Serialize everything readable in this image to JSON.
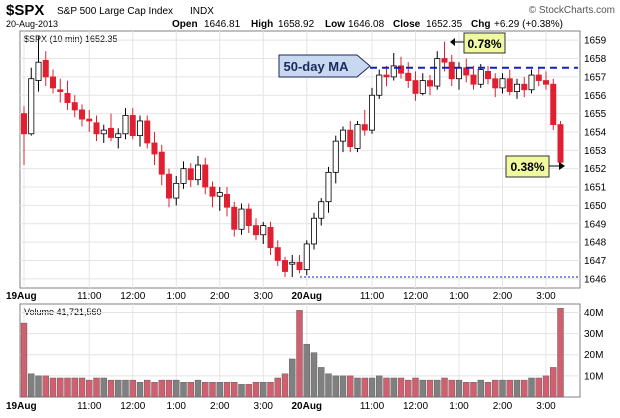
{
  "header": {
    "symbol": "$SPX",
    "name": "S&P 500 Large Cap Index",
    "exchange": "INDX",
    "date": "20-Aug-2013",
    "open_label": "Open",
    "open_value": "1646.81",
    "high_label": "High",
    "high_value": "1658.92",
    "low_label": "Low",
    "low_value": "1646.08",
    "close_label": "Close",
    "close_value": "1652.35",
    "chg_label": "Chg",
    "chg_value": "+6.29 (+0.38%)",
    "watermark": "© StockCharts.com"
  },
  "price_panel": {
    "legend": "$SPX (10 min) 1652.35",
    "ma_label": "50-day MA",
    "ma_level": 1657.5,
    "low_level": 1646.1,
    "callout_high": "0.78%",
    "callout_close": "0.38%"
  },
  "volume_panel": {
    "legend": "Volume 41,721,560"
  },
  "colors": {
    "up": "#ffffff",
    "down": "#e02030",
    "candle_outline": "#000000",
    "volume_up": "#808080",
    "volume_down": "#d06070",
    "ma_line": "#1020c0",
    "callout_fill": "#f0f8a0",
    "ma_label_fill": "#c8d8f0"
  },
  "chart_data": [
    {
      "type": "candlestick",
      "title": "$SPX (10 min)",
      "ylim": [
        1645.5,
        1659.5
      ],
      "y_ticks": [
        1646,
        1647,
        1648,
        1649,
        1650,
        1651,
        1652,
        1653,
        1654,
        1655,
        1656,
        1657,
        1658,
        1659
      ],
      "x_ticks": [
        {
          "label": "19Aug",
          "i": 0
        },
        {
          "label": "11:00",
          "i": 9
        },
        {
          "label": "12:00",
          "i": 15
        },
        {
          "label": "1:00",
          "i": 21
        },
        {
          "label": "2:00",
          "i": 27
        },
        {
          "label": "3:00",
          "i": 33
        },
        {
          "label": "20Aug",
          "i": 39
        },
        {
          "label": "11:00",
          "i": 48
        },
        {
          "label": "12:00",
          "i": 54
        },
        {
          "label": "1:00",
          "i": 60
        },
        {
          "label": "2:00",
          "i": 66
        },
        {
          "label": "3:00",
          "i": 72
        }
      ],
      "candles": [
        {
          "o": 1655.0,
          "h": 1655.4,
          "l": 1652.2,
          "c": 1653.9
        },
        {
          "o": 1653.9,
          "h": 1657.5,
          "l": 1653.8,
          "c": 1656.9
        },
        {
          "o": 1656.8,
          "h": 1659.2,
          "l": 1656.2,
          "c": 1657.8
        },
        {
          "o": 1657.9,
          "h": 1658.4,
          "l": 1656.5,
          "c": 1657.0
        },
        {
          "o": 1657.0,
          "h": 1657.4,
          "l": 1656.1,
          "c": 1656.4
        },
        {
          "o": 1656.3,
          "h": 1656.9,
          "l": 1655.6,
          "c": 1656.2
        },
        {
          "o": 1656.1,
          "h": 1656.8,
          "l": 1655.2,
          "c": 1655.6
        },
        {
          "o": 1655.6,
          "h": 1656.0,
          "l": 1654.8,
          "c": 1655.2
        },
        {
          "o": 1655.2,
          "h": 1655.5,
          "l": 1654.3,
          "c": 1654.7
        },
        {
          "o": 1654.7,
          "h": 1655.2,
          "l": 1654.0,
          "c": 1654.6
        },
        {
          "o": 1654.5,
          "h": 1654.9,
          "l": 1653.5,
          "c": 1653.9
        },
        {
          "o": 1653.9,
          "h": 1654.4,
          "l": 1653.4,
          "c": 1654.1
        },
        {
          "o": 1654.2,
          "h": 1655.0,
          "l": 1653.5,
          "c": 1653.7
        },
        {
          "o": 1653.7,
          "h": 1654.2,
          "l": 1653.1,
          "c": 1653.9
        },
        {
          "o": 1653.9,
          "h": 1655.3,
          "l": 1653.6,
          "c": 1654.9
        },
        {
          "o": 1654.9,
          "h": 1655.3,
          "l": 1653.6,
          "c": 1653.8
        },
        {
          "o": 1653.8,
          "h": 1654.9,
          "l": 1653.2,
          "c": 1654.6
        },
        {
          "o": 1654.6,
          "h": 1654.9,
          "l": 1653.1,
          "c": 1653.4
        },
        {
          "o": 1653.4,
          "h": 1654.0,
          "l": 1652.2,
          "c": 1652.8
        },
        {
          "o": 1652.9,
          "h": 1653.3,
          "l": 1651.1,
          "c": 1651.7
        },
        {
          "o": 1651.7,
          "h": 1652.0,
          "l": 1649.9,
          "c": 1650.4
        },
        {
          "o": 1650.4,
          "h": 1651.6,
          "l": 1650.0,
          "c": 1651.2
        },
        {
          "o": 1651.2,
          "h": 1652.4,
          "l": 1650.9,
          "c": 1652.0
        },
        {
          "o": 1652.0,
          "h": 1652.3,
          "l": 1651.0,
          "c": 1651.4
        },
        {
          "o": 1651.4,
          "h": 1652.7,
          "l": 1651.1,
          "c": 1652.2
        },
        {
          "o": 1652.2,
          "h": 1652.6,
          "l": 1650.6,
          "c": 1651.0
        },
        {
          "o": 1651.0,
          "h": 1651.3,
          "l": 1649.9,
          "c": 1650.5
        },
        {
          "o": 1650.5,
          "h": 1651.0,
          "l": 1649.7,
          "c": 1650.7
        },
        {
          "o": 1650.6,
          "h": 1651.0,
          "l": 1649.4,
          "c": 1649.9
        },
        {
          "o": 1649.9,
          "h": 1650.2,
          "l": 1648.3,
          "c": 1648.7
        },
        {
          "o": 1648.7,
          "h": 1650.1,
          "l": 1648.4,
          "c": 1649.8
        },
        {
          "o": 1649.8,
          "h": 1650.1,
          "l": 1648.5,
          "c": 1648.9
        },
        {
          "o": 1648.9,
          "h": 1649.3,
          "l": 1648.1,
          "c": 1648.4
        },
        {
          "o": 1648.4,
          "h": 1649.1,
          "l": 1647.9,
          "c": 1648.9
        },
        {
          "o": 1648.8,
          "h": 1649.1,
          "l": 1647.3,
          "c": 1647.7
        },
        {
          "o": 1647.7,
          "h": 1648.1,
          "l": 1646.7,
          "c": 1647.0
        },
        {
          "o": 1647.0,
          "h": 1647.2,
          "l": 1646.1,
          "c": 1646.4
        },
        {
          "o": 1646.8,
          "h": 1647.3,
          "l": 1646.1,
          "c": 1646.9
        },
        {
          "o": 1646.9,
          "h": 1647.3,
          "l": 1646.3,
          "c": 1646.5
        },
        {
          "o": 1646.5,
          "h": 1648.1,
          "l": 1646.2,
          "c": 1647.9
        },
        {
          "o": 1647.9,
          "h": 1649.6,
          "l": 1647.6,
          "c": 1649.3
        },
        {
          "o": 1649.3,
          "h": 1650.4,
          "l": 1648.9,
          "c": 1650.2
        },
        {
          "o": 1650.2,
          "h": 1652.1,
          "l": 1649.6,
          "c": 1651.8
        },
        {
          "o": 1651.8,
          "h": 1653.8,
          "l": 1651.2,
          "c": 1653.5
        },
        {
          "o": 1653.5,
          "h": 1654.3,
          "l": 1652.9,
          "c": 1654.1
        },
        {
          "o": 1654.1,
          "h": 1654.6,
          "l": 1652.9,
          "c": 1653.2
        },
        {
          "o": 1653.1,
          "h": 1654.6,
          "l": 1652.9,
          "c": 1654.4
        },
        {
          "o": 1654.4,
          "h": 1655.2,
          "l": 1653.8,
          "c": 1654.1
        },
        {
          "o": 1654.1,
          "h": 1656.4,
          "l": 1653.9,
          "c": 1656.0
        },
        {
          "o": 1656.0,
          "h": 1657.4,
          "l": 1655.8,
          "c": 1657.1
        },
        {
          "o": 1657.1,
          "h": 1657.6,
          "l": 1656.5,
          "c": 1657.0
        },
        {
          "o": 1657.0,
          "h": 1658.3,
          "l": 1656.8,
          "c": 1657.6
        },
        {
          "o": 1657.6,
          "h": 1658.1,
          "l": 1656.9,
          "c": 1657.2
        },
        {
          "o": 1657.2,
          "h": 1657.8,
          "l": 1656.4,
          "c": 1656.8
        },
        {
          "o": 1656.8,
          "h": 1657.3,
          "l": 1655.7,
          "c": 1656.1
        },
        {
          "o": 1656.1,
          "h": 1657.2,
          "l": 1656.0,
          "c": 1656.8
        },
        {
          "o": 1656.8,
          "h": 1657.1,
          "l": 1656.0,
          "c": 1656.5
        },
        {
          "o": 1656.5,
          "h": 1658.4,
          "l": 1656.3,
          "c": 1658.0
        },
        {
          "o": 1658.0,
          "h": 1658.92,
          "l": 1657.3,
          "c": 1657.8
        },
        {
          "o": 1657.8,
          "h": 1658.2,
          "l": 1656.5,
          "c": 1656.9
        },
        {
          "o": 1656.9,
          "h": 1657.8,
          "l": 1656.3,
          "c": 1657.5
        },
        {
          "o": 1657.5,
          "h": 1658.0,
          "l": 1656.7,
          "c": 1657.1
        },
        {
          "o": 1657.1,
          "h": 1657.6,
          "l": 1656.3,
          "c": 1656.6
        },
        {
          "o": 1656.6,
          "h": 1657.7,
          "l": 1656.4,
          "c": 1657.4
        },
        {
          "o": 1657.3,
          "h": 1657.6,
          "l": 1656.6,
          "c": 1656.9
        },
        {
          "o": 1656.9,
          "h": 1657.2,
          "l": 1655.9,
          "c": 1656.4
        },
        {
          "o": 1656.4,
          "h": 1657.2,
          "l": 1656.1,
          "c": 1656.9
        },
        {
          "o": 1656.9,
          "h": 1657.4,
          "l": 1656.0,
          "c": 1656.2
        },
        {
          "o": 1656.2,
          "h": 1656.9,
          "l": 1655.8,
          "c": 1656.6
        },
        {
          "o": 1656.6,
          "h": 1657.0,
          "l": 1655.9,
          "c": 1656.3
        },
        {
          "o": 1656.3,
          "h": 1657.4,
          "l": 1656.1,
          "c": 1657.1
        },
        {
          "o": 1657.1,
          "h": 1657.5,
          "l": 1656.5,
          "c": 1656.8
        },
        {
          "o": 1656.8,
          "h": 1657.3,
          "l": 1656.3,
          "c": 1656.6
        },
        {
          "o": 1656.6,
          "h": 1656.9,
          "l": 1654.1,
          "c": 1654.4
        },
        {
          "o": 1654.4,
          "h": 1654.6,
          "l": 1652.2,
          "c": 1652.35
        }
      ]
    },
    {
      "type": "bar",
      "title": "Volume",
      "ylim": [
        0,
        44
      ],
      "y_ticks_label": [
        "10M",
        "20M",
        "30M",
        "40M"
      ],
      "y_ticks": [
        10,
        20,
        30,
        40
      ],
      "values": [
        35,
        11,
        10,
        10,
        9,
        9,
        9,
        9,
        9,
        8,
        9,
        9,
        8,
        8,
        8,
        8,
        7,
        8,
        7,
        8,
        8,
        8,
        7,
        7,
        8,
        7,
        7,
        7,
        7,
        7,
        6,
        6,
        7,
        7,
        7,
        9,
        11,
        18,
        41,
        25,
        21,
        14,
        11,
        10,
        10,
        10,
        9,
        9,
        9,
        10,
        9,
        9,
        9,
        8,
        9,
        8,
        8,
        8,
        9,
        8,
        8,
        7,
        7,
        8,
        7,
        8,
        8,
        8,
        8,
        8,
        9,
        9,
        10,
        14,
        42
      ]
    }
  ]
}
